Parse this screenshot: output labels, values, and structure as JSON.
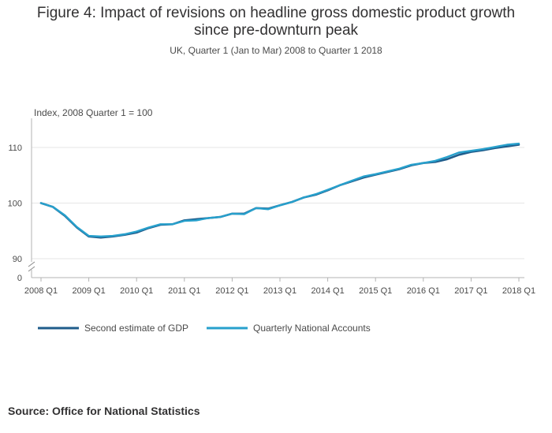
{
  "title_line1": "Figure 4: Impact of revisions on headline gross domestic product growth",
  "title_line2": "since pre-downturn peak",
  "subtitle": "UK, Quarter 1 (Jan to Mar) 2008 to Quarter 1 2018",
  "source": "Source: Office for National Statistics",
  "colors": {
    "second_estimate": "#1f5c8b",
    "qna": "#27a0cc",
    "grid": "#e6e6e6",
    "axis": "#b3b3b3"
  },
  "chart_data": {
    "type": "line",
    "ylabel": "Index, 2008 Quarter 1 = 100",
    "xlabel": "",
    "ylim": [
      90,
      115
    ],
    "y_break": true,
    "y_ticks": [
      "0",
      "90",
      "100",
      "110"
    ],
    "grid": true,
    "legend_position": "bottom",
    "x_tick_labels": [
      "2008 Q1",
      "2009 Q1",
      "2010 Q1",
      "2011 Q1",
      "2012 Q1",
      "2013 Q1",
      "2014 Q1",
      "2015 Q1",
      "2016 Q1",
      "2017 Q1",
      "2018 Q1"
    ],
    "x": [
      "2008 Q1",
      "2008 Q2",
      "2008 Q3",
      "2008 Q4",
      "2009 Q1",
      "2009 Q2",
      "2009 Q3",
      "2009 Q4",
      "2010 Q1",
      "2010 Q2",
      "2010 Q3",
      "2010 Q4",
      "2011 Q1",
      "2011 Q2",
      "2011 Q3",
      "2011 Q4",
      "2012 Q1",
      "2012 Q2",
      "2012 Q3",
      "2012 Q4",
      "2013 Q1",
      "2013 Q2",
      "2013 Q3",
      "2013 Q4",
      "2014 Q1",
      "2014 Q2",
      "2014 Q3",
      "2014 Q4",
      "2015 Q1",
      "2015 Q2",
      "2015 Q3",
      "2015 Q4",
      "2016 Q1",
      "2016 Q2",
      "2016 Q3",
      "2016 Q4",
      "2017 Q1",
      "2017 Q2",
      "2017 Q3",
      "2017 Q4",
      "2018 Q1"
    ],
    "series": [
      {
        "name": "Second estimate of GDP",
        "values": [
          100.0,
          99.3,
          97.7,
          95.6,
          94.0,
          93.8,
          94.0,
          94.3,
          94.7,
          95.5,
          96.1,
          96.2,
          96.9,
          97.1,
          97.3,
          97.5,
          98.1,
          98.1,
          99.1,
          99.0,
          99.6,
          100.2,
          101.0,
          101.5,
          102.3,
          103.2,
          103.9,
          104.6,
          105.1,
          105.6,
          106.1,
          106.8,
          107.2,
          107.4,
          107.9,
          108.7,
          109.2,
          109.5,
          109.9,
          110.2,
          110.5
        ]
      },
      {
        "name": "Quarterly National Accounts",
        "values": [
          100.0,
          99.3,
          97.8,
          95.7,
          94.1,
          94.0,
          94.1,
          94.4,
          94.9,
          95.6,
          96.2,
          96.2,
          96.8,
          96.9,
          97.3,
          97.5,
          98.1,
          98.0,
          99.1,
          98.9,
          99.6,
          100.2,
          101.0,
          101.6,
          102.4,
          103.2,
          104.0,
          104.8,
          105.2,
          105.7,
          106.2,
          106.9,
          107.2,
          107.6,
          108.3,
          109.1,
          109.4,
          109.7,
          110.1,
          110.5,
          110.7
        ]
      }
    ]
  }
}
